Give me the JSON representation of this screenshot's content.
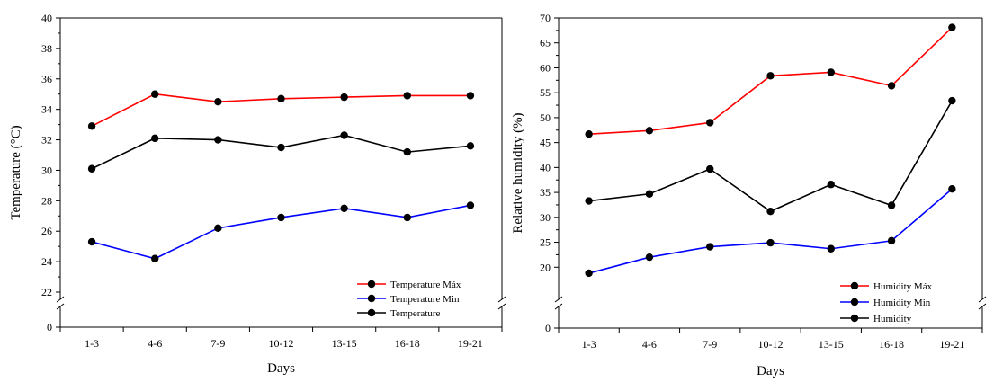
{
  "chart_data": [
    {
      "type": "line",
      "title": "",
      "xlabel": "Days",
      "ylabel": "Temperature (°C)",
      "categories": [
        "1-3",
        "4-6",
        "7-9",
        "10-12",
        "13-15",
        "16-18",
        "19-21"
      ],
      "ylim": [
        0,
        40
      ],
      "axis_break": [
        0,
        22
      ],
      "yticks": [
        0,
        22,
        24,
        26,
        28,
        30,
        32,
        34,
        36,
        38,
        40
      ],
      "grid": false,
      "legend_position": "bottom-right",
      "series": [
        {
          "name": "Temperature Máx",
          "color": "#ff0000",
          "values": [
            32.9,
            35.0,
            34.5,
            34.7,
            34.8,
            34.9,
            34.9
          ]
        },
        {
          "name": "Temperature Min",
          "color": "#0000ff",
          "values": [
            25.3,
            24.2,
            26.2,
            26.9,
            27.5,
            26.9,
            27.7
          ]
        },
        {
          "name": "Temperature",
          "color": "#000000",
          "values": [
            30.1,
            32.1,
            32.0,
            31.5,
            32.3,
            31.2,
            31.6
          ]
        }
      ]
    },
    {
      "type": "line",
      "title": "",
      "xlabel": "Days",
      "ylabel": "Relative humidity (%)",
      "categories": [
        "1-3",
        "4-6",
        "7-9",
        "10-12",
        "13-15",
        "16-18",
        "19-21"
      ],
      "ylim": [
        0,
        70
      ],
      "axis_break": [
        0,
        15
      ],
      "yticks": [
        0,
        20,
        25,
        30,
        35,
        40,
        45,
        50,
        55,
        60,
        65,
        70
      ],
      "grid": false,
      "legend_position": "bottom-right",
      "series": [
        {
          "name": "Humidity Máx",
          "color": "#ff0000",
          "values": [
            46.7,
            47.4,
            49.0,
            58.4,
            59.1,
            56.4,
            68.1
          ]
        },
        {
          "name": "Humidity Min",
          "color": "#0000ff",
          "values": [
            18.8,
            22.0,
            24.1,
            24.9,
            23.7,
            25.3,
            35.7
          ]
        },
        {
          "name": "Humidity",
          "color": "#000000",
          "values": [
            33.3,
            34.7,
            39.7,
            31.2,
            36.6,
            32.4,
            53.4
          ]
        }
      ]
    }
  ]
}
